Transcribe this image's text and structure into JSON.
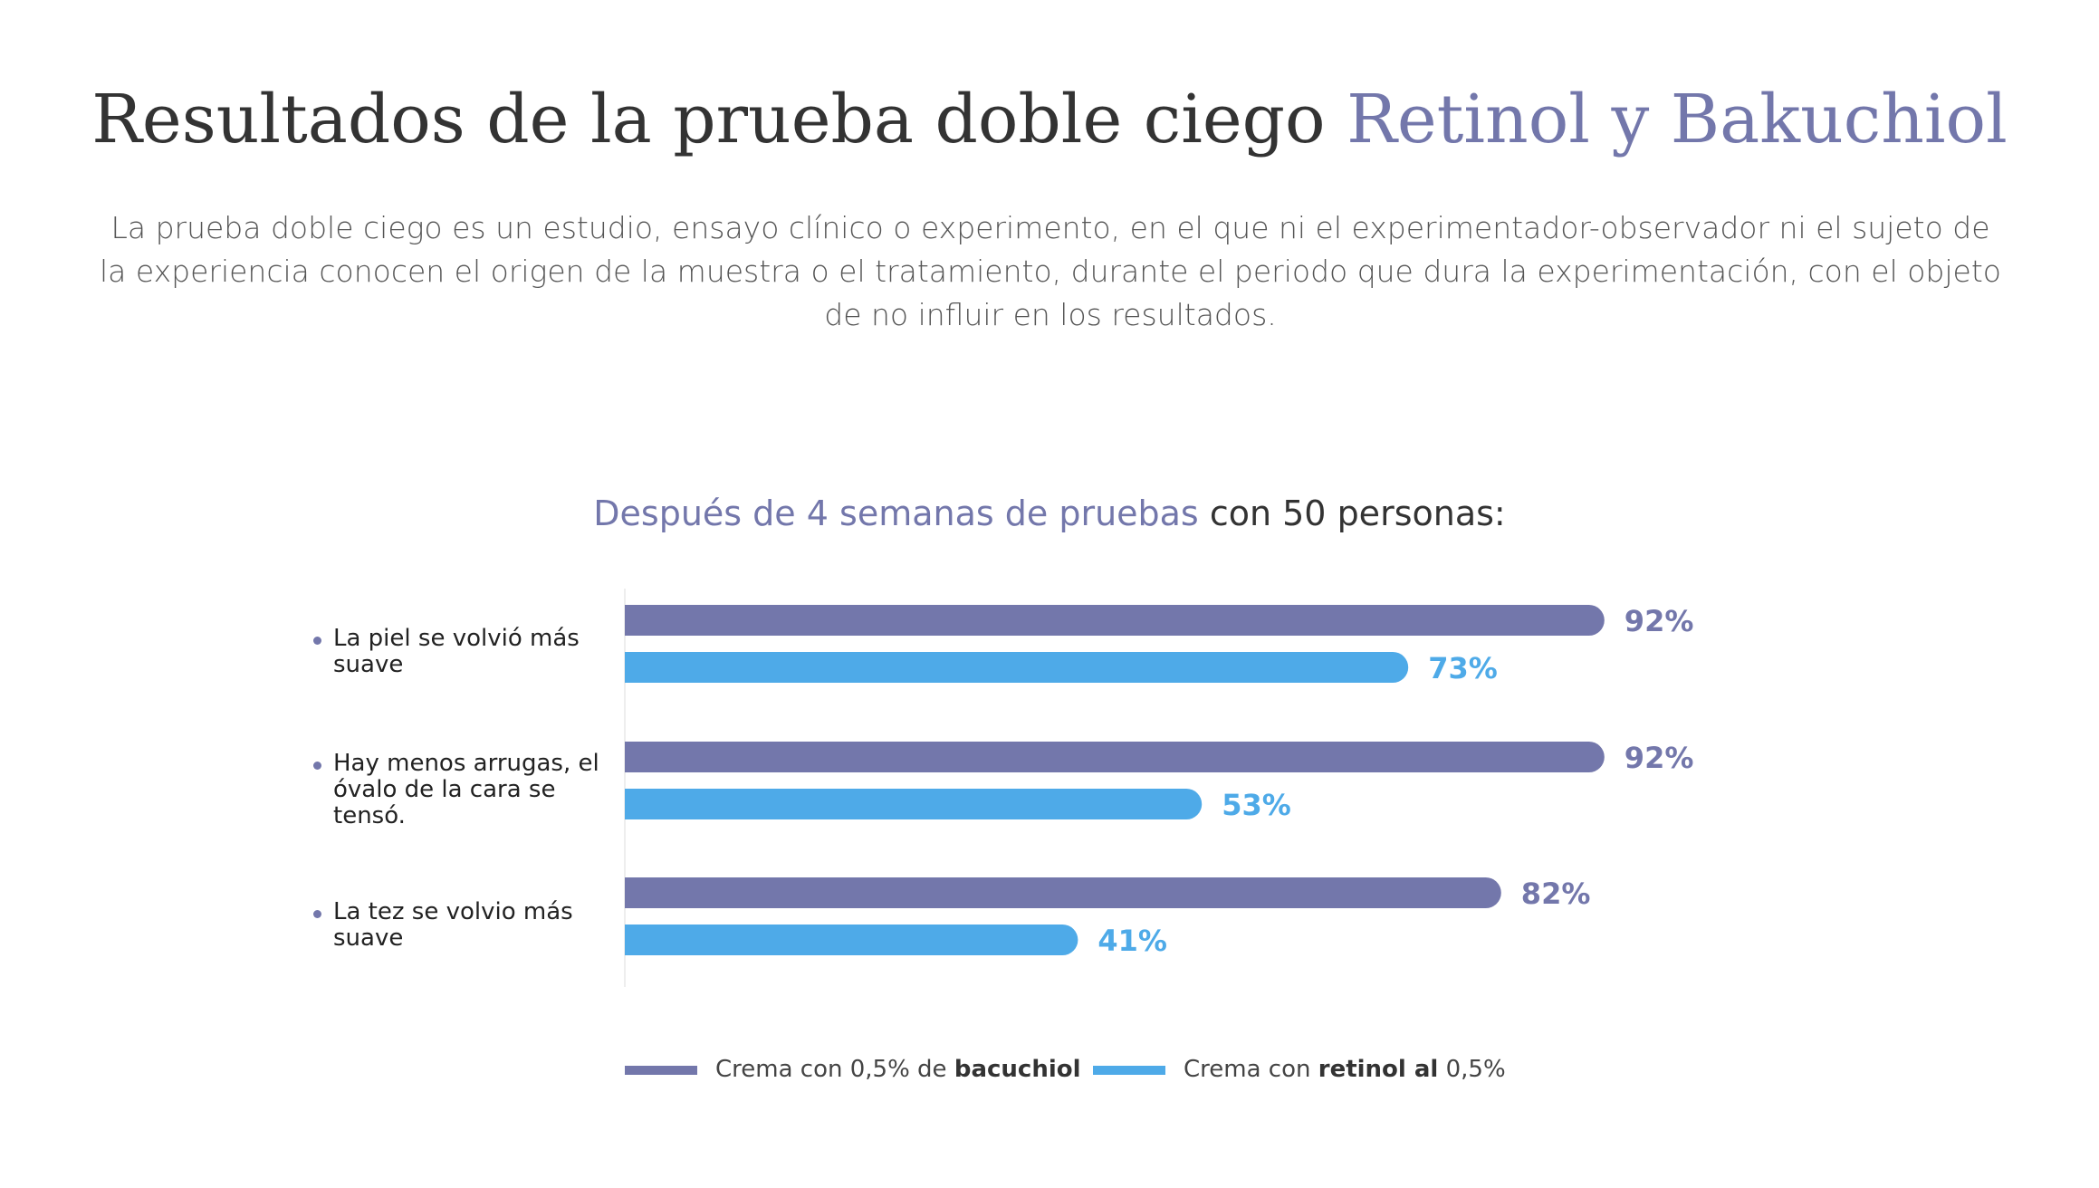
{
  "header": {
    "title_main": "Resultados de la prueba doble ciego",
    "title_accent": "Retinol y Bakuchiol",
    "intro": "La prueba doble ciego es un estudio, ensayo clínico o experimento, en el que ni el experimentador-observador ni el sujeto de la experiencia conocen el origen de la muestra o el tratamiento, durante el periodo que dura la experimentación, con el objeto de no influir en los resultados."
  },
  "chart_heading": {
    "accent": "Después de 4 semanas de pruebas",
    "rest": "con 50 personas:"
  },
  "colors": {
    "bakuchiol": "#7377ab",
    "retinol": "#4eaae8",
    "accent": "#7377ab"
  },
  "chart_data": {
    "type": "bar",
    "orientation": "horizontal",
    "categories": [
      "La piel se volvió más suave",
      "Hay menos arrugas, el óvalo de la cara se tensó.",
      "La tez se volvio más suave"
    ],
    "series": [
      {
        "name": "Crema con 0,5% de bacuchiol",
        "values": [
          92,
          92,
          82
        ],
        "labels": [
          "92%",
          "92%",
          "82%"
        ]
      },
      {
        "name": "Crema con retinol al 0,5%",
        "values": [
          73,
          53,
          41
        ],
        "labels": [
          "73%",
          "53%",
          "41%"
        ]
      }
    ],
    "xlim": [
      0,
      100
    ],
    "unit": "%",
    "legend_position": "bottom"
  },
  "legend": {
    "item1": {
      "pre": "Crema con 0,5% de ",
      "bold": "bacuchiol",
      "post": ""
    },
    "item2": {
      "pre": "Crema con ",
      "bold": "retinol al",
      "post": " 0,5%"
    }
  }
}
